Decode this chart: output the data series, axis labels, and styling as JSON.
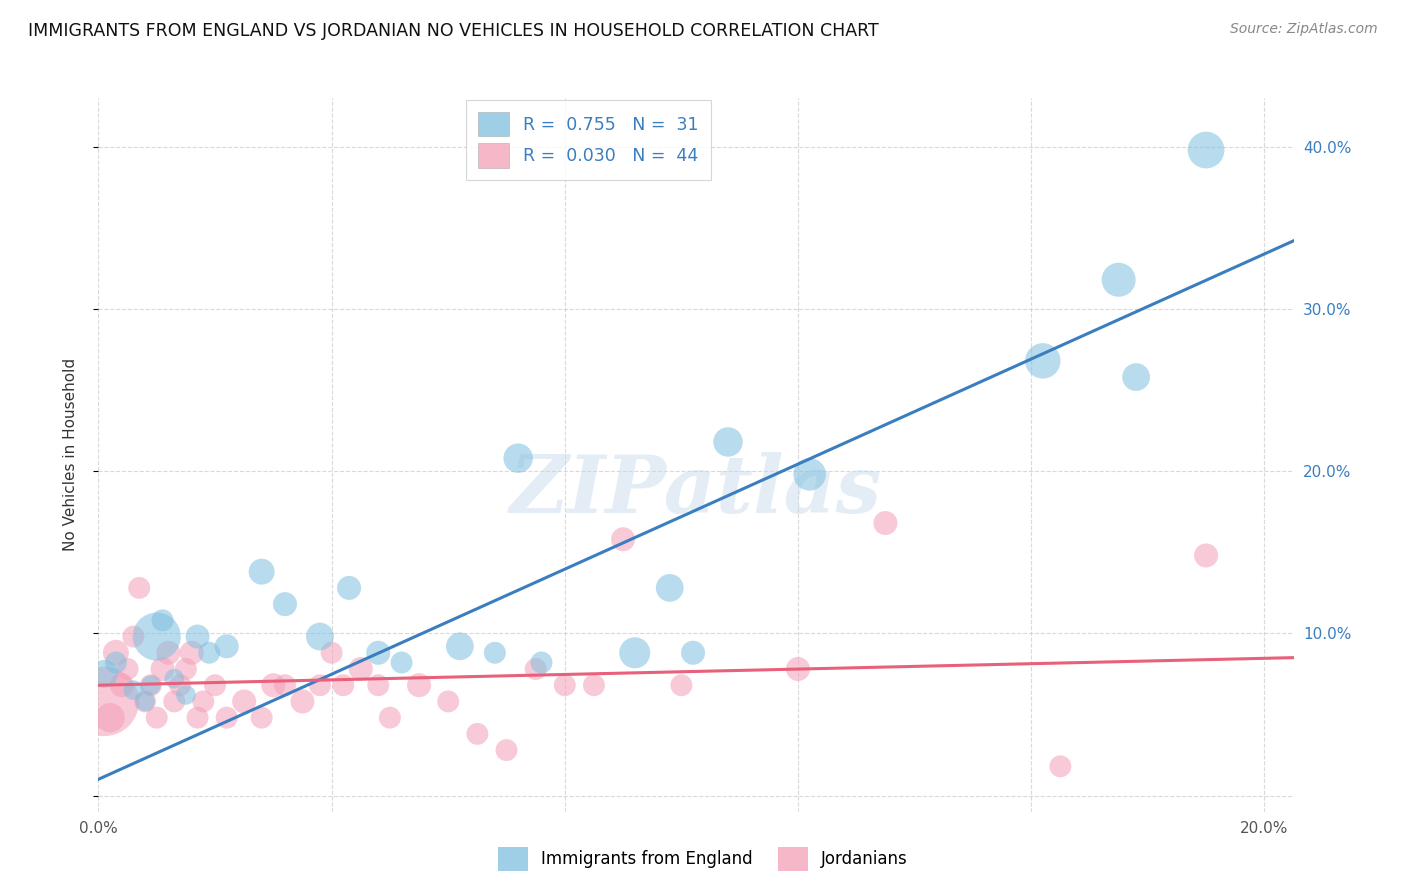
{
  "title": "IMMIGRANTS FROM ENGLAND VS JORDANIAN NO VEHICLES IN HOUSEHOLD CORRELATION CHART",
  "source": "Source: ZipAtlas.com",
  "ylabel": "No Vehicles in Household",
  "xlim": [
    0.0,
    0.205
  ],
  "ylim": [
    -0.01,
    0.43
  ],
  "blue_color": "#7fbfdf",
  "pink_color": "#f4a0b8",
  "blue_line_color": "#3a7ebf",
  "pink_line_color": "#e8607a",
  "grid_color": "#d0d0d0",
  "watermark": "ZIPatlas",
  "blue_x": [
    0.001,
    0.003,
    0.006,
    0.008,
    0.009,
    0.01,
    0.011,
    0.013,
    0.015,
    0.017,
    0.019,
    0.022,
    0.028,
    0.032,
    0.038,
    0.043,
    0.048,
    0.052,
    0.062,
    0.068,
    0.072,
    0.076,
    0.092,
    0.098,
    0.102,
    0.108,
    0.122,
    0.162,
    0.175,
    0.178,
    0.19
  ],
  "blue_y": [
    0.075,
    0.082,
    0.065,
    0.058,
    0.068,
    0.098,
    0.108,
    0.072,
    0.062,
    0.098,
    0.088,
    0.092,
    0.138,
    0.118,
    0.098,
    0.128,
    0.088,
    0.082,
    0.092,
    0.088,
    0.208,
    0.082,
    0.088,
    0.128,
    0.088,
    0.218,
    0.198,
    0.268,
    0.318,
    0.258,
    0.398
  ],
  "blue_sizes": [
    400,
    250,
    200,
    200,
    200,
    1200,
    250,
    200,
    200,
    300,
    250,
    300,
    350,
    300,
    400,
    300,
    300,
    250,
    400,
    250,
    450,
    250,
    500,
    400,
    300,
    450,
    550,
    650,
    600,
    400,
    700
  ],
  "pink_x": [
    0.001,
    0.002,
    0.003,
    0.004,
    0.005,
    0.006,
    0.007,
    0.008,
    0.009,
    0.01,
    0.011,
    0.012,
    0.013,
    0.014,
    0.015,
    0.016,
    0.017,
    0.018,
    0.02,
    0.022,
    0.025,
    0.028,
    0.03,
    0.032,
    0.035,
    0.038,
    0.04,
    0.042,
    0.045,
    0.048,
    0.05,
    0.055,
    0.06,
    0.065,
    0.07,
    0.075,
    0.08,
    0.085,
    0.09,
    0.1,
    0.12,
    0.135,
    0.165,
    0.19
  ],
  "pink_y": [
    0.058,
    0.048,
    0.088,
    0.068,
    0.078,
    0.098,
    0.128,
    0.058,
    0.068,
    0.048,
    0.078,
    0.088,
    0.058,
    0.068,
    0.078,
    0.088,
    0.048,
    0.058,
    0.068,
    0.048,
    0.058,
    0.048,
    0.068,
    0.068,
    0.058,
    0.068,
    0.088,
    0.068,
    0.078,
    0.068,
    0.048,
    0.068,
    0.058,
    0.038,
    0.028,
    0.078,
    0.068,
    0.068,
    0.158,
    0.068,
    0.078,
    0.168,
    0.018,
    0.148
  ],
  "pink_sizes": [
    2500,
    450,
    350,
    300,
    250,
    250,
    250,
    250,
    250,
    250,
    300,
    300,
    250,
    250,
    250,
    300,
    250,
    250,
    250,
    250,
    300,
    250,
    300,
    250,
    300,
    250,
    250,
    250,
    300,
    250,
    250,
    300,
    250,
    250,
    250,
    250,
    250,
    250,
    300,
    250,
    300,
    300,
    250,
    300
  ],
  "blue_trendline_x": [
    0.0,
    0.205
  ],
  "blue_trendline_y": [
    0.01,
    0.342
  ],
  "pink_trendline_x": [
    0.0,
    0.205
  ],
  "pink_trendline_y": [
    0.068,
    0.085
  ],
  "x_tick_positions": [
    0.0,
    0.04,
    0.08,
    0.12,
    0.16,
    0.2
  ],
  "x_tick_labels": [
    "0.0%",
    "",
    "",
    "",
    "",
    "20.0%"
  ],
  "y_tick_positions": [
    0.0,
    0.1,
    0.2,
    0.3,
    0.4
  ],
  "y_tick_labels": [
    "",
    "10.0%",
    "20.0%",
    "30.0%",
    "40.0%"
  ],
  "legend_label1": "R =  0.755   N =  31",
  "legend_label2": "R =  0.030   N =  44",
  "bottom_legend1": "Immigrants from England",
  "bottom_legend2": "Jordanians"
}
